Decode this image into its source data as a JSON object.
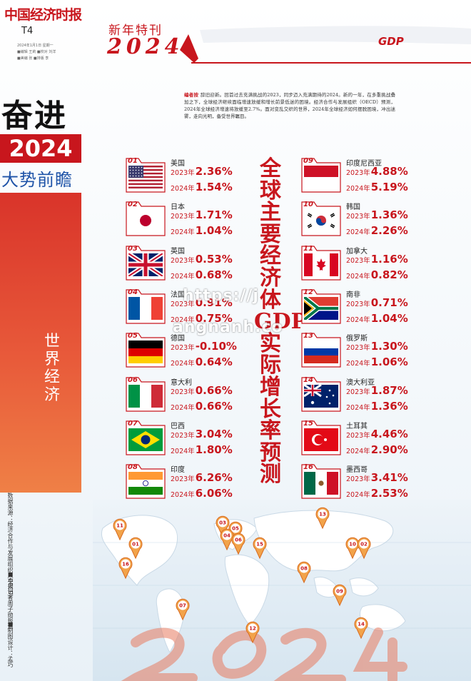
{
  "masthead": {
    "title": "中国经济时报",
    "page": "T4",
    "meta_line1": "2024年1月1日 星期一",
    "meta_line2": "■编辑 王莉 ■校对 刘洋",
    "meta_line3": "■美编 张 ■排版 李"
  },
  "side": {
    "headline": "奋进",
    "year": "2024",
    "subhead": "大势前瞻",
    "section": "世界经济",
    "note1": "数据来源：经济合作与发展组织（OECD）",
    "note2": "■本报记者周子勋报道",
    "note3": "■制图设计：孟巧",
    "colors": {
      "red": "#c8161d",
      "blue": "#1f54a8"
    }
  },
  "header": {
    "special": "新年特刊",
    "year": "2024",
    "gdp": "GDP"
  },
  "note": {
    "label": "编者按",
    "text": "辞旧迎新。回首过去充满挑战的2023，同步迈入充满期待的2024。新的一年，在多重挑战叠加之下，全球经济继续面临增速放缓和增长前景低迷的困境。经济合作与发展组织（OECD）预测，2024年全球经济增速将放缓至2.7%。面对变乱交织的世界，2024年全球经济如何摆脱困境，冲出迷雾，走向光明，备受世界瞩目。"
  },
  "headline_vertical": "全球主要经济体GDP实际增长率预测",
  "labels": {
    "y2023": "2023年",
    "y2024": "2024年"
  },
  "countries": [
    {
      "num": "01",
      "name": "美国",
      "r2023": "2.36%",
      "r2024": "1.54%",
      "flag": "us"
    },
    {
      "num": "02",
      "name": "日本",
      "r2023": "1.71%",
      "r2024": "1.04%",
      "flag": "jp"
    },
    {
      "num": "03",
      "name": "英国",
      "r2023": "0.53%",
      "r2024": "0.68%",
      "flag": "gb"
    },
    {
      "num": "04",
      "name": "法国",
      "r2023": "0.91%",
      "r2024": "0.75%",
      "flag": "fr"
    },
    {
      "num": "05",
      "name": "德国",
      "r2023": "-0.10%",
      "r2024": "0.64%",
      "flag": "de"
    },
    {
      "num": "06",
      "name": "意大利",
      "r2023": "0.66%",
      "r2024": "0.66%",
      "flag": "it"
    },
    {
      "num": "07",
      "name": "巴西",
      "r2023": "3.04%",
      "r2024": "1.80%",
      "flag": "br"
    },
    {
      "num": "08",
      "name": "印度",
      "r2023": "6.26%",
      "r2024": "6.06%",
      "flag": "in"
    },
    {
      "num": "09",
      "name": "印度尼西亚",
      "r2023": "4.88%",
      "r2024": "5.19%",
      "flag": "id"
    },
    {
      "num": "10",
      "name": "韩国",
      "r2023": "1.36%",
      "r2024": "2.26%",
      "flag": "kr"
    },
    {
      "num": "11",
      "name": "加拿大",
      "r2023": "1.16%",
      "r2024": "0.82%",
      "flag": "ca"
    },
    {
      "num": "12",
      "name": "南非",
      "r2023": "0.71%",
      "r2024": "1.04%",
      "flag": "za"
    },
    {
      "num": "13",
      "name": "俄罗斯",
      "r2023": "1.30%",
      "r2024": "1.06%",
      "flag": "ru"
    },
    {
      "num": "14",
      "name": "澳大利亚",
      "r2023": "1.87%",
      "r2024": "1.36%",
      "flag": "au"
    },
    {
      "num": "15",
      "name": "土耳其",
      "r2023": "4.46%",
      "r2024": "2.90%",
      "flag": "tr"
    },
    {
      "num": "16",
      "name": "墨西哥",
      "r2023": "3.41%",
      "r2024": "2.53%",
      "flag": "mx"
    }
  ],
  "map_pins": [
    "11",
    "01",
    "16",
    "07",
    "03",
    "05",
    "04",
    "06",
    "15",
    "08",
    "13",
    "10",
    "02",
    "09",
    "12",
    "14"
  ],
  "watermark": {
    "line1": "https://j",
    "line2": "angnanh.co"
  }
}
